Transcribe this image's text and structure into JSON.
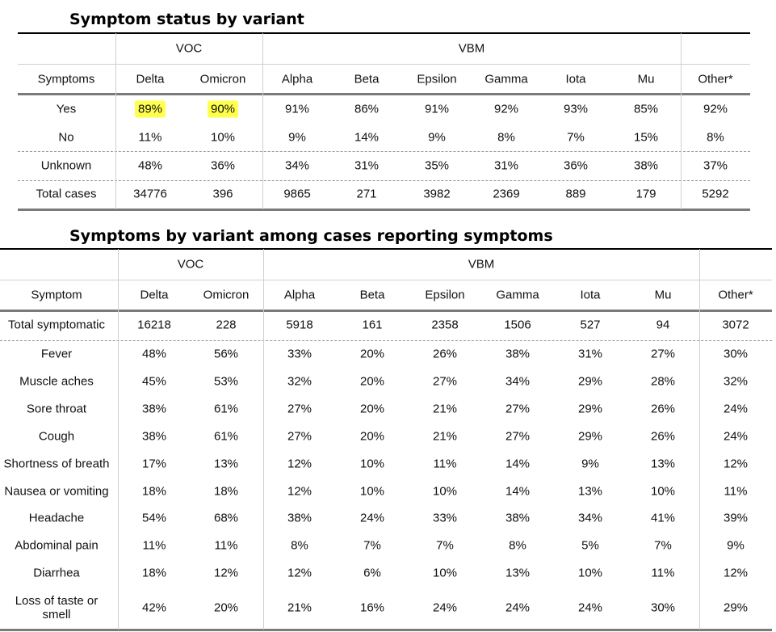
{
  "table1": {
    "title": "Symptom status by variant",
    "groups": {
      "voc": "VOC",
      "vbm": "VBM"
    },
    "headers": [
      "Symptoms",
      "Delta",
      "Omicron",
      "Alpha",
      "Beta",
      "Epsilon",
      "Gamma",
      "Iota",
      "Mu",
      "Other*"
    ],
    "rows": [
      [
        "Yes",
        "89%",
        "90%",
        "91%",
        "86%",
        "91%",
        "92%",
        "93%",
        "85%",
        "92%"
      ],
      [
        "No",
        "11%",
        "10%",
        "9%",
        "14%",
        "9%",
        "8%",
        "7%",
        "15%",
        "8%"
      ],
      [
        "Unknown",
        "48%",
        "36%",
        "34%",
        "31%",
        "35%",
        "31%",
        "36%",
        "38%",
        "37%"
      ],
      [
        "Total cases",
        "34776",
        "396",
        "9865",
        "271",
        "3982",
        "2369",
        "889",
        "179",
        "5292"
      ]
    ],
    "highlight_color": "#ffff4d"
  },
  "table2": {
    "title": "Symptoms by variant among cases reporting symptoms",
    "groups": {
      "voc": "VOC",
      "vbm": "VBM"
    },
    "headers": [
      "Symptom",
      "Delta",
      "Omicron",
      "Alpha",
      "Beta",
      "Epsilon",
      "Gamma",
      "Iota",
      "Mu",
      "Other*"
    ],
    "rows": [
      [
        "Total symptomatic",
        "16218",
        "228",
        "5918",
        "161",
        "2358",
        "1506",
        "527",
        "94",
        "3072"
      ],
      [
        "Fever",
        "48%",
        "56%",
        "33%",
        "20%",
        "26%",
        "38%",
        "31%",
        "27%",
        "30%"
      ],
      [
        "Muscle aches",
        "45%",
        "53%",
        "32%",
        "20%",
        "27%",
        "34%",
        "29%",
        "28%",
        "32%"
      ],
      [
        "Sore throat",
        "38%",
        "61%",
        "27%",
        "20%",
        "21%",
        "27%",
        "29%",
        "26%",
        "24%"
      ],
      [
        "Cough",
        "38%",
        "61%",
        "27%",
        "20%",
        "21%",
        "27%",
        "29%",
        "26%",
        "24%"
      ],
      [
        "Shortness of breath",
        "17%",
        "13%",
        "12%",
        "10%",
        "11%",
        "14%",
        "9%",
        "13%",
        "12%"
      ],
      [
        "Nausea or vomiting",
        "18%",
        "18%",
        "12%",
        "10%",
        "10%",
        "14%",
        "13%",
        "10%",
        "11%"
      ],
      [
        "Headache",
        "54%",
        "68%",
        "38%",
        "24%",
        "33%",
        "38%",
        "34%",
        "41%",
        "39%"
      ],
      [
        "Abdominal pain",
        "11%",
        "11%",
        "8%",
        "7%",
        "7%",
        "8%",
        "5%",
        "7%",
        "9%"
      ],
      [
        "Diarrhea",
        "18%",
        "12%",
        "12%",
        "6%",
        "10%",
        "13%",
        "10%",
        "11%",
        "12%"
      ],
      [
        "Loss of taste or smell",
        "42%",
        "20%",
        "21%",
        "16%",
        "24%",
        "24%",
        "24%",
        "30%",
        "29%"
      ]
    ]
  }
}
